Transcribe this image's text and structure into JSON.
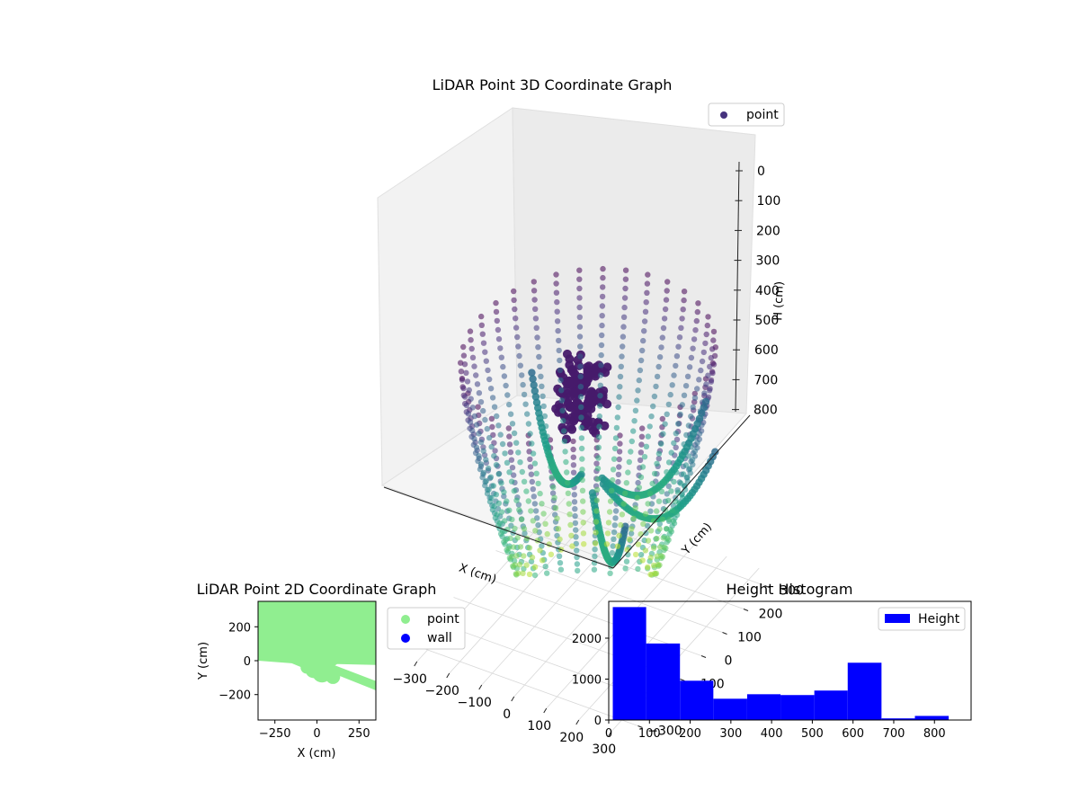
{
  "chart_data": [
    {
      "type": "scatter",
      "projection": "3d",
      "title": "LiDAR Point 3D Coordinate Graph",
      "xlabel": "X (cm)",
      "ylabel": "Y (cm)",
      "zlabel": "H (cm)",
      "xticks": [
        "−300",
        "−200",
        "−100",
        "0",
        "100",
        "200",
        "300"
      ],
      "yticks": [
        "−300",
        "−200",
        "−100",
        "0",
        "100",
        "200",
        "300"
      ],
      "zticks": [
        "0",
        "100",
        "200",
        "300",
        "400",
        "500",
        "600",
        "700",
        "800"
      ],
      "xlim": [
        -350,
        350
      ],
      "ylim": [
        -350,
        350
      ],
      "zlim": [
        0,
        850
      ],
      "z_inverted": true,
      "colormap": "viridis",
      "legend": {
        "placement": "upper-right",
        "entries": [
          "point"
        ]
      },
      "grid": true,
      "series": [
        {
          "name": "point",
          "shape": "bowl-shaped point cloud of meridian rings, r ≈ 330 near H 0 narrowing toward H 800, with a dark cluster near the centre top and several curved arcs"
        }
      ]
    },
    {
      "type": "scatter",
      "title": "LiDAR Point 2D Coordinate Graph",
      "xlabel": "X (cm)",
      "ylabel": "Y (cm)",
      "xticks": [
        "−250",
        "0",
        "250"
      ],
      "yticks": [
        "200",
        "0",
        "−200"
      ],
      "xlim": [
        -350,
        350
      ],
      "ylim": [
        -350,
        350
      ],
      "legend": {
        "placement": "outside-right",
        "entries": [
          "point",
          "wall"
        ]
      },
      "series": [
        {
          "name": "point",
          "color": "#90ee90",
          "description": "dense green fill from y ≈ 0 up to 350 across all x, with a band slanting down to y ≈ −170 at x = 350"
        },
        {
          "name": "wall",
          "color": "#0000ff"
        }
      ]
    },
    {
      "type": "bar",
      "title": "Height Histogram",
      "bins": [
        [
          0,
          82
        ],
        [
          82,
          165
        ],
        [
          165,
          247
        ],
        [
          247,
          330
        ],
        [
          330,
          412
        ],
        [
          412,
          495
        ],
        [
          495,
          577
        ],
        [
          577,
          660
        ],
        [
          660,
          742
        ],
        [
          742,
          825
        ]
      ],
      "values": [
        2760,
        1870,
        960,
        520,
        630,
        610,
        720,
        1400,
        40,
        100
      ],
      "xticks": [
        "0",
        "100",
        "200",
        "300",
        "400",
        "500",
        "600",
        "700",
        "800"
      ],
      "yticks": [
        "0",
        "1000",
        "2000"
      ],
      "xlim": [
        0,
        890
      ],
      "ylim": [
        0,
        2900
      ],
      "color": "#0000ff",
      "legend": {
        "placement": "upper-right",
        "entries": [
          "Height"
        ]
      },
      "series": [
        {
          "name": "Height"
        }
      ]
    }
  ]
}
